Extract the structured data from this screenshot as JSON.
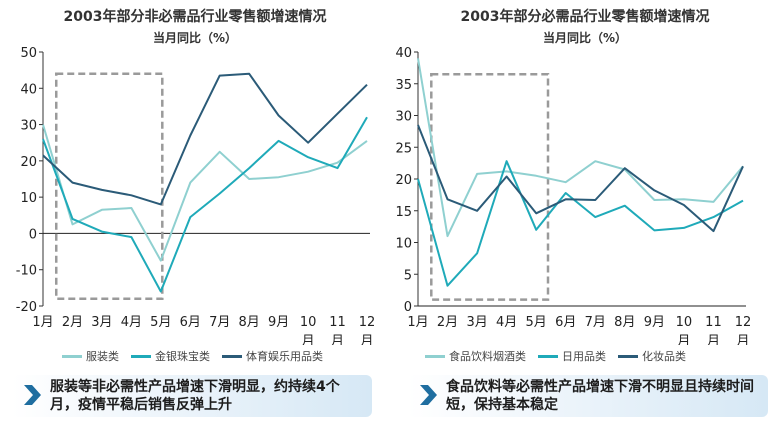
{
  "colors": {
    "light": "#8fd0d0",
    "mid": "#1faab9",
    "dark": "#2b5b78",
    "box": "#9a9a9a",
    "arrow": "#1f6ea0"
  },
  "chart_data": [
    {
      "type": "line",
      "title": "2003年部分非必需品行业零售额增速情况",
      "subtitle": "当月同比（%）",
      "xlabel": "",
      "ylabel": "",
      "categories": [
        "1月",
        "2月",
        "3月",
        "4月",
        "5月",
        "6月",
        "7月",
        "8月",
        "9月",
        "10月",
        "11月",
        "12月"
      ],
      "ylim": [
        -20,
        50
      ],
      "ystep": 10,
      "legend_position": "bottom",
      "highlight_box": {
        "x_from": "1月-2月",
        "x_to": "5月",
        "y_range": [
          -18,
          44
        ]
      },
      "series": [
        {
          "name": "服装类",
          "color": "light",
          "values": [
            30,
            2.5,
            6.5,
            7,
            -7.5,
            14,
            22.5,
            15,
            15.5,
            17,
            19.5,
            25.5
          ]
        },
        {
          "name": "金银珠宝类",
          "color": "mid",
          "values": [
            26,
            4,
            0.5,
            -1,
            -16,
            4.5,
            11,
            18,
            25.5,
            21,
            18,
            32
          ]
        },
        {
          "name": "体育娱乐用品类",
          "color": "dark",
          "values": [
            21.5,
            14,
            12,
            10.5,
            8,
            27,
            43.5,
            44,
            32.5,
            25,
            33,
            41
          ]
        }
      ]
    },
    {
      "type": "line",
      "title": "2003年部分必需品行业零售额增速情况",
      "subtitle": "当月同比（%）",
      "xlabel": "",
      "ylabel": "",
      "categories": [
        "1月",
        "2月",
        "3月",
        "4月",
        "5月",
        "6月",
        "7月",
        "8月",
        "9月",
        "10月",
        "11月",
        "12月"
      ],
      "ylim": [
        0,
        40
      ],
      "ystep": 5,
      "legend_position": "bottom",
      "highlight_box": {
        "x_from": "1月-2月",
        "x_to": "5月",
        "y_range": [
          1,
          36.5
        ]
      },
      "series": [
        {
          "name": "食品饮料烟酒类",
          "color": "light",
          "values": [
            39,
            11,
            20.8,
            21.2,
            20.5,
            19.5,
            22.8,
            21.5,
            16.7,
            16.8,
            16.4,
            22
          ]
        },
        {
          "name": "日用品类",
          "color": "mid",
          "values": [
            20,
            3.2,
            8.3,
            22.8,
            12,
            17.8,
            14,
            15.8,
            11.9,
            12.3,
            14,
            16.6
          ]
        },
        {
          "name": "化妆品类",
          "color": "dark",
          "values": [
            28.5,
            16.8,
            15,
            20.4,
            14.6,
            16.8,
            16.7,
            21.7,
            18.2,
            15.9,
            11.8,
            22
          ]
        }
      ]
    }
  ],
  "banners": [
    {
      "text": "服装等非必需性产品增速下滑明显，约持续4个月，疫情平稳后销售反弹上升"
    },
    {
      "text": "食品饮料等必需性产品增速下滑不明显且持续时间短，保持基本稳定"
    }
  ]
}
